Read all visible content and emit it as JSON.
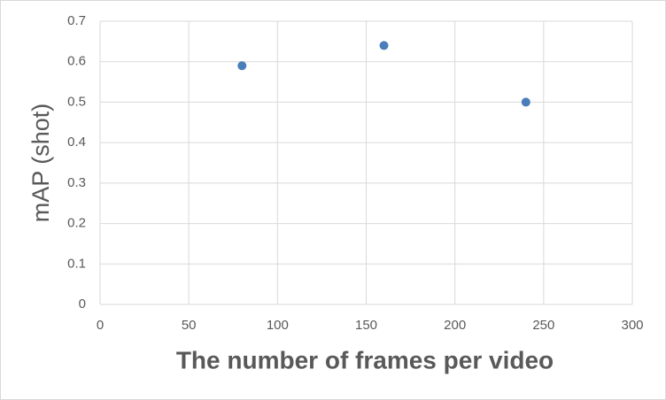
{
  "chart_data": {
    "type": "scatter",
    "x_label": "The number of frames per video",
    "y_label": "mAP (shot)",
    "series": [
      {
        "x": [
          80,
          160,
          240
        ],
        "values": [
          0.59,
          0.64,
          0.5
        ],
        "color": "#4a7ebb"
      }
    ],
    "xlim": [
      0,
      300
    ],
    "xticks": [
      0,
      50,
      100,
      150,
      200,
      250,
      300
    ],
    "ylim": [
      0,
      0.7
    ],
    "yticks": [
      0,
      0.1,
      0.2,
      0.3,
      0.4,
      0.5,
      0.6,
      0.7
    ],
    "grid": true
  }
}
